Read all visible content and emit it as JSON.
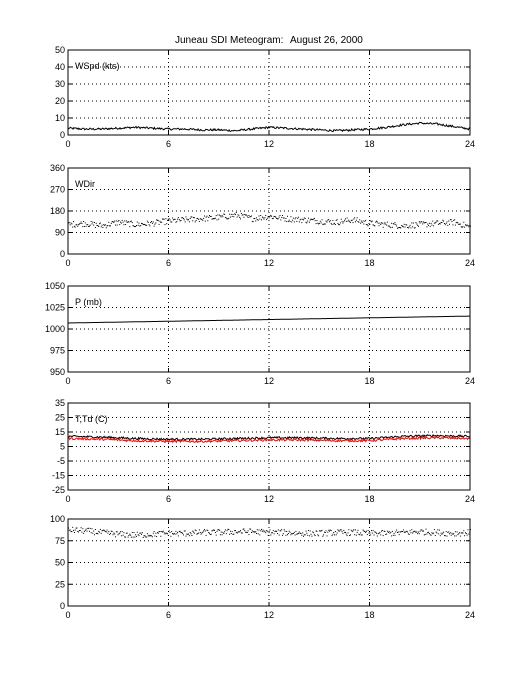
{
  "title": {
    "station": "Juneau SDI Meteogram:",
    "date": "August 26, 2000"
  },
  "chart_data": [
    {
      "type": "line",
      "label": "WSpd (kts)",
      "xlim": [
        0,
        24
      ],
      "xticks": [
        0,
        6,
        12,
        18,
        24
      ],
      "ylim": [
        0,
        50
      ],
      "yticks": [
        0,
        10,
        20,
        30,
        40,
        50
      ],
      "grid": true,
      "series": [
        {
          "color": "#000000",
          "style": "line",
          "x": [
            0,
            1,
            2,
            3,
            4,
            5,
            6,
            7,
            8,
            9,
            10,
            11,
            12,
            13,
            14,
            15,
            16,
            17,
            18,
            19,
            20,
            21,
            22,
            23,
            24
          ],
          "y": [
            4,
            3.5,
            3.5,
            4,
            4.5,
            4,
            3.5,
            3.5,
            3,
            3,
            2.5,
            3.5,
            4.5,
            4,
            3.5,
            3,
            2.5,
            3,
            3.5,
            4.5,
            6,
            7,
            6.5,
            5,
            3.5
          ]
        }
      ]
    },
    {
      "type": "scatter",
      "label": "WDir",
      "xlim": [
        0,
        24
      ],
      "xticks": [
        0,
        6,
        12,
        18,
        24
      ],
      "ylim": [
        0,
        360
      ],
      "yticks": [
        0,
        90,
        180,
        270,
        360
      ],
      "grid": true,
      "series": [
        {
          "color": "#000000",
          "style": "dots",
          "x": [
            0,
            1,
            2,
            3,
            4,
            5,
            6,
            7,
            8,
            9,
            10,
            11,
            12,
            13,
            14,
            15,
            16,
            17,
            18,
            19,
            20,
            21,
            22,
            23,
            24
          ],
          "y": [
            125,
            130,
            120,
            135,
            125,
            130,
            140,
            145,
            150,
            155,
            165,
            150,
            160,
            150,
            145,
            140,
            135,
            145,
            130,
            125,
            120,
            125,
            130,
            135,
            115
          ]
        }
      ]
    },
    {
      "type": "line",
      "label": "P (mb)",
      "xlim": [
        0,
        24
      ],
      "xticks": [
        0,
        6,
        12,
        18,
        24
      ],
      "ylim": [
        950,
        1050
      ],
      "yticks": [
        950,
        975,
        1000,
        1025,
        1050
      ],
      "grid": true,
      "series": [
        {
          "color": "#000000",
          "style": "line",
          "x": [
            0,
            24
          ],
          "y": [
            1007,
            1015
          ]
        }
      ]
    },
    {
      "type": "line",
      "label": "T,Td (C)",
      "xlim": [
        0,
        24
      ],
      "xticks": [
        0,
        6,
        12,
        18,
        24
      ],
      "ylim": [
        -25,
        35
      ],
      "yticks": [
        -25,
        -15,
        -5,
        5,
        15,
        25,
        35
      ],
      "grid": true,
      "series": [
        {
          "color": "#000000",
          "style": "line",
          "x": [
            0,
            2,
            4,
            6,
            8,
            10,
            12,
            14,
            16,
            18,
            20,
            22,
            24
          ],
          "y": [
            12,
            11.5,
            10.5,
            10,
            10,
            10.5,
            11,
            11,
            10.5,
            10.5,
            12,
            12.5,
            12
          ]
        },
        {
          "color": "#ff0000",
          "style": "line",
          "x": [
            0,
            2,
            4,
            6,
            8,
            10,
            12,
            14,
            16,
            18,
            20,
            22,
            24
          ],
          "y": [
            10.5,
            10,
            9,
            8.5,
            8.5,
            9,
            9.5,
            9.5,
            9,
            9,
            10.5,
            11,
            10.5
          ]
        }
      ]
    },
    {
      "type": "scatter",
      "label": "",
      "xlim": [
        0,
        24
      ],
      "xticks": [
        0,
        6,
        12,
        18,
        24
      ],
      "ylim": [
        0,
        100
      ],
      "yticks": [
        0,
        25,
        50,
        75,
        100
      ],
      "grid": true,
      "series": [
        {
          "color": "#000000",
          "style": "dots",
          "x": [
            0,
            1,
            2,
            3,
            4,
            5,
            6,
            7,
            8,
            9,
            10,
            11,
            12,
            13,
            14,
            15,
            16,
            17,
            18,
            19,
            20,
            21,
            22,
            23,
            24
          ],
          "y": [
            88,
            87,
            85,
            83,
            82,
            83,
            84,
            84,
            85,
            85,
            86,
            86,
            85,
            85,
            84,
            84,
            85,
            85,
            84,
            84,
            85,
            86,
            85,
            84,
            85
          ]
        }
      ]
    }
  ]
}
